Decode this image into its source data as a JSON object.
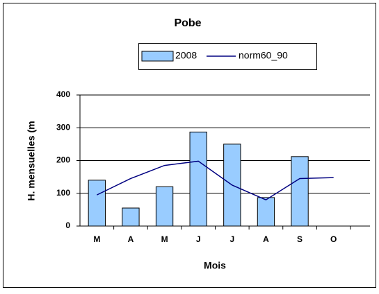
{
  "chart_data": {
    "type": "bar",
    "title": "Pobe",
    "x_label": "Mois",
    "y_label": "H. mensuelles (m",
    "categories": [
      "M",
      "A",
      "M",
      "J",
      "J",
      "A",
      "S",
      "O"
    ],
    "series": [
      {
        "name": "2008",
        "type": "bar",
        "color": "#99ccff",
        "values": [
          140,
          55,
          120,
          287,
          250,
          87,
          212,
          null
        ]
      },
      {
        "name": "norm60_90",
        "type": "line",
        "color": "#000080",
        "values": [
          95,
          145,
          185,
          198,
          125,
          80,
          145,
          148
        ]
      }
    ],
    "ylim": [
      0,
      400
    ],
    "yticks": [
      0,
      100,
      200,
      300,
      400
    ],
    "grid": true
  }
}
